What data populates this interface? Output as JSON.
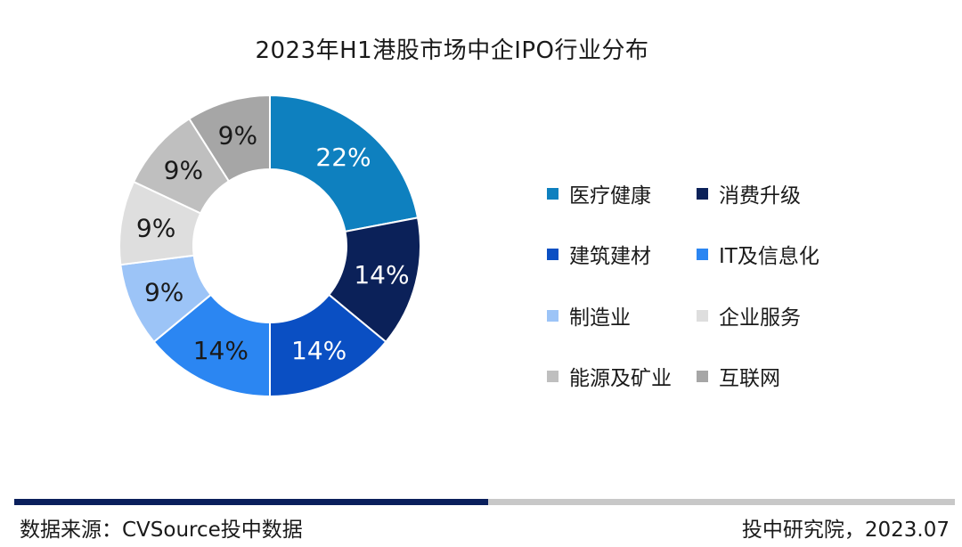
{
  "chart_data": {
    "type": "pie",
    "title": "2023年H1港股市场中企IPO行业分布",
    "categories": [
      "医疗健康",
      "消费升级",
      "建筑建材",
      "IT及信息化",
      "制造业",
      "企业服务",
      "能源及矿业",
      "互联网"
    ],
    "values": [
      22,
      14,
      14,
      14,
      9,
      9,
      9,
      9
    ],
    "labels": [
      "22%",
      "14%",
      "14%",
      "14%",
      "9%",
      "9%",
      "9%",
      "9%"
    ],
    "colors": [
      "#0e80bf",
      "#0b2159",
      "#0a4fc3",
      "#2b86f2",
      "#9cc4f7",
      "#dedede",
      "#bfbfbf",
      "#a6a6a6"
    ],
    "label_colors": [
      "#ffffff",
      "#ffffff",
      "#ffffff",
      "#1a1a1a",
      "#1a1a1a",
      "#1a1a1a",
      "#1a1a1a",
      "#1a1a1a"
    ],
    "donut": true,
    "legend_position": "right"
  },
  "footer": {
    "source": "数据来源：CVSource投中数据",
    "credit": "投中研究院，2023.07"
  }
}
